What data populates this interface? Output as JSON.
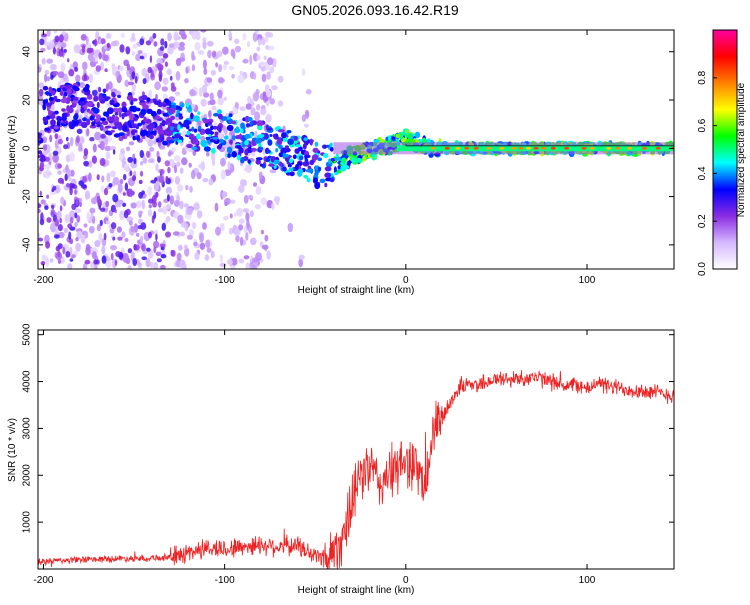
{
  "figure": {
    "title": "GN05.2026.093.16.42.R19"
  },
  "chart_data": [
    {
      "type": "heatmap",
      "title": "GN05.2026.093.16.42.R19",
      "xlabel": "Height of straight line (km)",
      "ylabel": "Frequency (Hz)",
      "xlim": [
        -203,
        148
      ],
      "ylim": [
        -50,
        49
      ],
      "xticks": [
        -200,
        -100,
        0,
        100
      ],
      "yticks": [
        -40,
        -20,
        0,
        20,
        40
      ],
      "grid": false,
      "description_track": {
        "x": [
          -200,
          -180,
          -160,
          -140,
          -120,
          -100,
          -80,
          -60,
          -45,
          -38,
          -30,
          -20,
          -10,
          0,
          10,
          20,
          40,
          60,
          80,
          100,
          120,
          148
        ],
        "y": [
          16,
          18,
          14,
          12,
          9,
          6,
          2,
          -3,
          -8,
          -7,
          -3,
          -1,
          1,
          4,
          1,
          0,
          0,
          0,
          0,
          0,
          0,
          0
        ]
      },
      "colorbar": {
        "label": "Normalized spectral amplitude",
        "range": [
          0,
          1
        ],
        "ticks": [
          0.0,
          0.2,
          0.4,
          0.6,
          0.8
        ],
        "tick_labels": [
          "0.0",
          "0.2",
          "0.4",
          "0.6",
          "0.8"
        ],
        "colormap": [
          "#ffffff",
          "#d4b8ff",
          "#8a2be2",
          "#0000ff",
          "#00ffff",
          "#00ff00",
          "#ffff00",
          "#ff8000",
          "#ff0000",
          "#ff00a0"
        ]
      }
    },
    {
      "type": "line",
      "xlabel": "Height of straight line (km)",
      "ylabel": "SNR (10 * v/v)",
      "xlim": [
        -203,
        148
      ],
      "ylim": [
        0,
        5100
      ],
      "xticks": [
        -200,
        -100,
        0,
        100
      ],
      "yticks": [
        1000,
        2000,
        3000,
        4000,
        5000
      ],
      "grid": false,
      "series": [
        {
          "name": "SNR",
          "color": "#ee2222",
          "x": [
            -203,
            -190,
            -175,
            -160,
            -145,
            -130,
            -120,
            -110,
            -100,
            -90,
            -80,
            -70,
            -60,
            -50,
            -45,
            -40,
            -35,
            -30,
            -25,
            -20,
            -15,
            -10,
            -5,
            0,
            5,
            10,
            15,
            20,
            25,
            30,
            40,
            50,
            60,
            70,
            80,
            90,
            95,
            100,
            105,
            110,
            120,
            130,
            140,
            148
          ],
          "y": [
            150,
            180,
            200,
            220,
            230,
            250,
            350,
            450,
            420,
            480,
            520,
            480,
            500,
            280,
            250,
            350,
            700,
            1300,
            2000,
            2200,
            1800,
            2000,
            2100,
            2300,
            2300,
            1600,
            2900,
            3200,
            3600,
            3900,
            3950,
            4050,
            4050,
            4100,
            4000,
            3900,
            3950,
            3800,
            4000,
            3900,
            3850,
            3800,
            3750,
            3700
          ]
        }
      ]
    }
  ],
  "colors": {
    "snr_line": "#ee2222",
    "axis": "#000000"
  }
}
